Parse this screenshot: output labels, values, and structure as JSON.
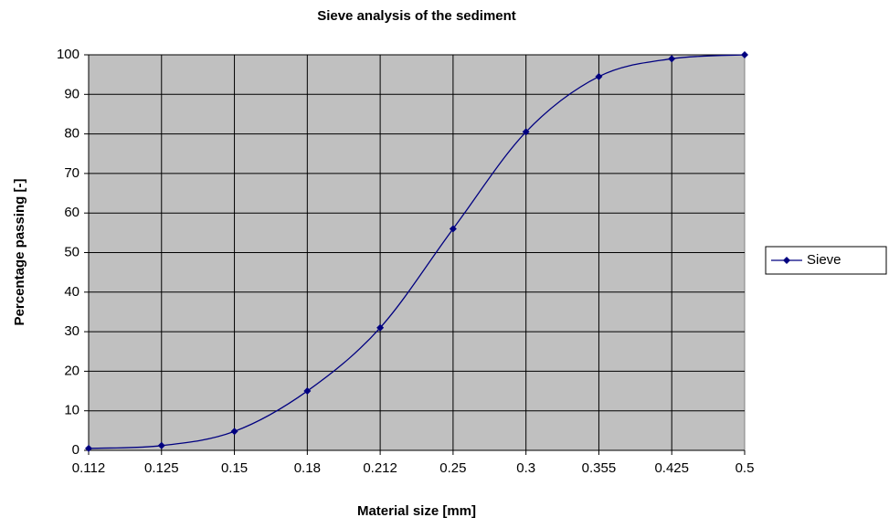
{
  "chart_data": {
    "type": "line",
    "title": "Sieve analysis of the sediment",
    "x_label": "Material size [mm]",
    "y_label": "Percentage passing [-]",
    "categories": [
      "0.112",
      "0.125",
      "0.15",
      "0.18",
      "0.212",
      "0.25",
      "0.3",
      "0.355",
      "0.425",
      "0.5"
    ],
    "series": [
      {
        "name": "Sieve",
        "color": "#000080",
        "values": [
          0.5,
          1.2,
          4.8,
          15,
          31,
          56,
          80.5,
          94.5,
          99,
          100
        ]
      }
    ],
    "ylim": [
      0,
      100
    ],
    "yticks": [
      0,
      10,
      20,
      30,
      40,
      50,
      60,
      70,
      80,
      90,
      100
    ],
    "grid": true,
    "smooth": true,
    "legend": "right",
    "plot_background": "#c0c0c0"
  }
}
